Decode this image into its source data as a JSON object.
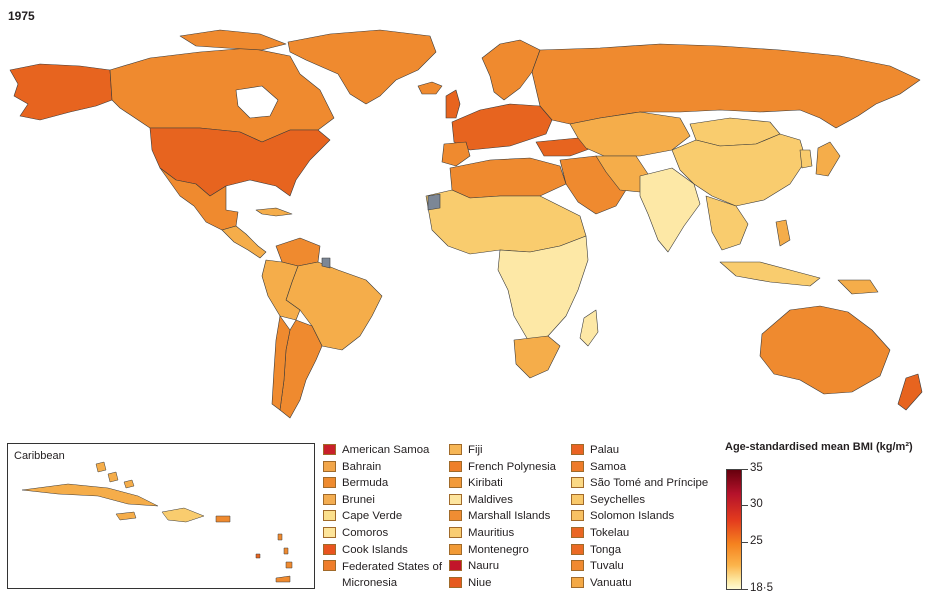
{
  "map": {
    "year": "1975"
  },
  "inset": {
    "title": "Caribbean"
  },
  "legend": {
    "col1": [
      {
        "label": "American Samoa",
        "color": "#c9202a"
      },
      {
        "label": "Bahrain",
        "color": "#f2a64a"
      },
      {
        "label": "Bermuda",
        "color": "#ee8a2e"
      },
      {
        "label": "Brunei",
        "color": "#f3ad52"
      },
      {
        "label": "Cape Verde",
        "color": "#fbdf8c"
      },
      {
        "label": "Comoros",
        "color": "#fde49a"
      },
      {
        "label": "Cook Islands",
        "color": "#e9541f"
      },
      {
        "label": "Federated States of Micronesia",
        "color": "#ef7d2a"
      }
    ],
    "col2": [
      {
        "label": "Fiji",
        "color": "#f6b656"
      },
      {
        "label": "French Polynesia",
        "color": "#ee7f2a"
      },
      {
        "label": "Kiribati",
        "color": "#f29a3a"
      },
      {
        "label": "Maldives",
        "color": "#fde59f"
      },
      {
        "label": "Marshall Islands",
        "color": "#f08d33"
      },
      {
        "label": "Mauritius",
        "color": "#f9cd72"
      },
      {
        "label": "Montenegro",
        "color": "#f19a36"
      },
      {
        "label": "Nauru",
        "color": "#c2152a"
      },
      {
        "label": "Niue",
        "color": "#e65a1e"
      }
    ],
    "col3": [
      {
        "label": "Palau",
        "color": "#ea6323"
      },
      {
        "label": "Samoa",
        "color": "#ee7b29"
      },
      {
        "label": "São Tomé and Príncipe",
        "color": "#fbd985"
      },
      {
        "label": "Seychelles",
        "color": "#f9c96b"
      },
      {
        "label": "Solomon Islands",
        "color": "#f8c163"
      },
      {
        "label": "Tokelau",
        "color": "#ea6623"
      },
      {
        "label": "Tonga",
        "color": "#eb6a24"
      },
      {
        "label": "Tuvalu",
        "color": "#f08a30"
      },
      {
        "label": "Vanuatu",
        "color": "#f4a946"
      }
    ]
  },
  "colorbar": {
    "title": "Age-standardised mean BMI (kg/m²)",
    "ticks": [
      {
        "label": "35",
        "value": 35
      },
      {
        "label": "30",
        "value": 30
      },
      {
        "label": "25",
        "value": 25
      },
      {
        "label": "18·5",
        "value": 18.5
      }
    ],
    "min": 18.5,
    "max": 35
  },
  "colors": {
    "ocean": "#ffffff",
    "border": "#3a3a3a",
    "no_data": "#7c8796",
    "high": "#e7641f",
    "mid_high": "#ef8a2f",
    "mid": "#f5ad4a",
    "mid_low": "#f9cc6e",
    "low": "#fde8a6"
  }
}
